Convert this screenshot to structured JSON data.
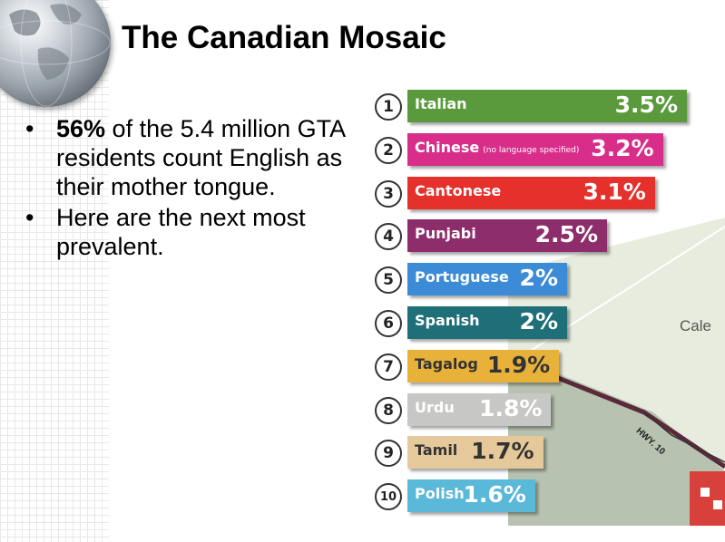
{
  "slide": {
    "title": "The Canadian Mosaic",
    "bullets": [
      {
        "pct": "56%",
        "text": " of the 5.4 million GTA residents count English as their mother tongue."
      },
      {
        "pct": "",
        "text": "Here are the next most prevalent."
      }
    ],
    "map_label": "Cale",
    "highway_label": "HWY. 10"
  },
  "chart_data": {
    "type": "bar",
    "unit": "%",
    "categories": [
      "Italian",
      "Chinese",
      "Cantonese",
      "Punjabi",
      "Portuguese",
      "Spanish",
      "Tagalog",
      "Urdu",
      "Tamil",
      "Polish"
    ],
    "category_notes": [
      "",
      "(no language specified)",
      "",
      "",
      "",
      "",
      "",
      "",
      "",
      ""
    ],
    "ranks": [
      "1",
      "2",
      "3",
      "4",
      "5",
      "6",
      "7",
      "8",
      "9",
      "10"
    ],
    "values": [
      3.5,
      3.2,
      3.1,
      2.5,
      2,
      2,
      1.9,
      1.8,
      1.7,
      1.6
    ],
    "value_labels": [
      "3.5%",
      "3.2%",
      "3.1%",
      "2.5%",
      "2%",
      "2%",
      "1.9%",
      "1.8%",
      "1.7%",
      "1.6%"
    ],
    "colors": [
      "#5b9a3c",
      "#d92d8a",
      "#e5302c",
      "#8e2d6b",
      "#3b8bd6",
      "#1f6f78",
      "#e8b23a",
      "#c7c8c5",
      "#e6c99a",
      "#5ab8d8"
    ],
    "text_dark": [
      false,
      false,
      false,
      false,
      false,
      false,
      true,
      false,
      true,
      false
    ]
  }
}
